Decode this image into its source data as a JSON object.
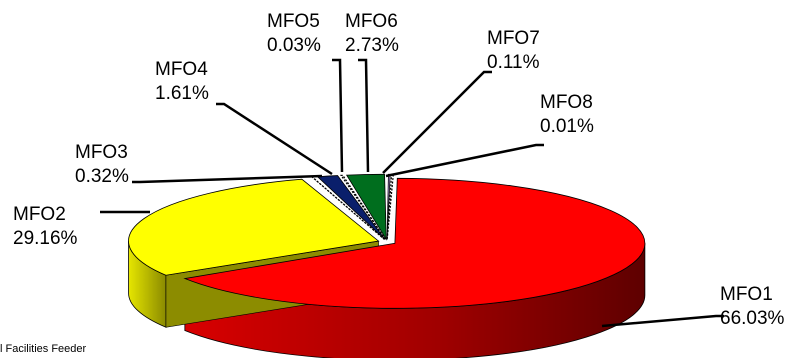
{
  "chart_data": {
    "type": "pie",
    "style": "3d-exploded",
    "title": "",
    "slices": [
      {
        "name": "MFO1",
        "label": "66.03%",
        "value": 66.03,
        "color": "#ff0000"
      },
      {
        "name": "MFO2",
        "label": "29.16%",
        "value": 29.16,
        "color": "#ffff00"
      },
      {
        "name": "MFO3",
        "label": "0.32%",
        "value": 0.32,
        "color": "#ffffff"
      },
      {
        "name": "MFO4",
        "label": "1.61%",
        "value": 1.61,
        "color": "#0a1f6b"
      },
      {
        "name": "MFO5",
        "label": "0.03%",
        "value": 0.03,
        "color": "#ffffff"
      },
      {
        "name": "MFO6",
        "label": "2.73%",
        "value": 2.73,
        "color": "#006e1e"
      },
      {
        "name": "MFO7",
        "label": "0.11%",
        "value": 0.11,
        "color": "#c8a8f8"
      },
      {
        "name": "MFO8",
        "label": "0.01%",
        "value": 0.01,
        "color": "#ffffff"
      }
    ],
    "footnote": "l Facilities Feeder"
  }
}
